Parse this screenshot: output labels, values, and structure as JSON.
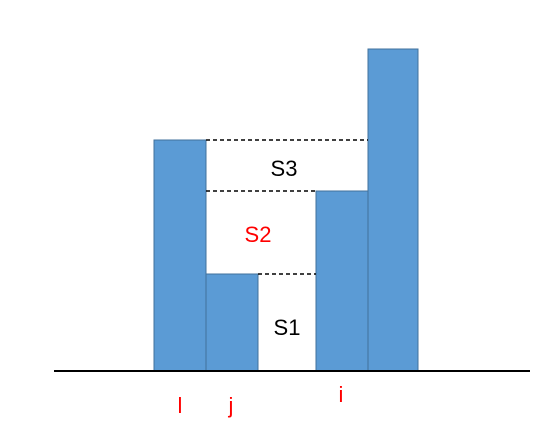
{
  "diagram": {
    "colors": {
      "bar_fill": "#5b9bd5",
      "bar_stroke": "#41719c",
      "baseline": "#000000",
      "dashed_line": "#000000",
      "region_label_black": "#000000",
      "region_label_red": "#ff0000",
      "index_label": "#ff0000"
    },
    "bars": [
      {
        "id": "bar-l"
      },
      {
        "id": "bar-j"
      },
      {
        "id": "bar-i"
      },
      {
        "id": "bar-4"
      }
    ],
    "regions": [
      {
        "label": "S3",
        "color": "black"
      },
      {
        "label": "S2",
        "color": "red"
      },
      {
        "label": "S1",
        "color": "black"
      }
    ],
    "index_labels": [
      "l",
      "j",
      "i"
    ]
  }
}
